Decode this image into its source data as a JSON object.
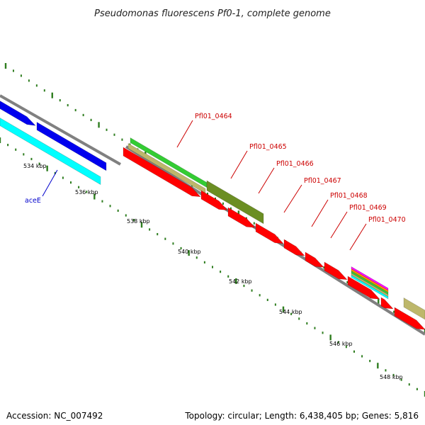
{
  "title": "Pseudomonas fluorescens Pf0-1, complete genome",
  "footer": {
    "accession": "Accession: NC_007492",
    "summary": "Topology: circular; Length: 6,438,405 bp; Genes: 5,816"
  },
  "colors": {
    "backbone": "#808080",
    "tick": "#2e7d1f",
    "label_red": "#cc0000",
    "label_blue": "#0000cc",
    "feature_red": "#ff0000",
    "feature_blue": "#0000ee",
    "feature_cyan": "#00ffff",
    "feature_green": "#33cc33",
    "feature_olive": "#6b8e23",
    "feature_khaki": "#bdb76b",
    "feature_magenta": "#ff00ff",
    "feature_orange": "#ff8c00"
  },
  "scale_labels": [
    "534 kbp",
    "536 kbp",
    "538 kbp",
    "540 kbp",
    "542 kbp",
    "544 kbp",
    "546 kbp",
    "548 kbp"
  ],
  "gene_labels": [
    {
      "name": "aceE",
      "color": "blue"
    },
    {
      "name": "Pfl01_0464",
      "color": "red"
    },
    {
      "name": "Pfl01_0465",
      "color": "red"
    },
    {
      "name": "Pfl01_0466",
      "color": "red"
    },
    {
      "name": "Pfl01_0467",
      "color": "red"
    },
    {
      "name": "Pfl01_0468",
      "color": "red"
    },
    {
      "name": "Pfl01_0469",
      "color": "red"
    },
    {
      "name": "Pfl01_0470",
      "color": "red"
    }
  ]
}
